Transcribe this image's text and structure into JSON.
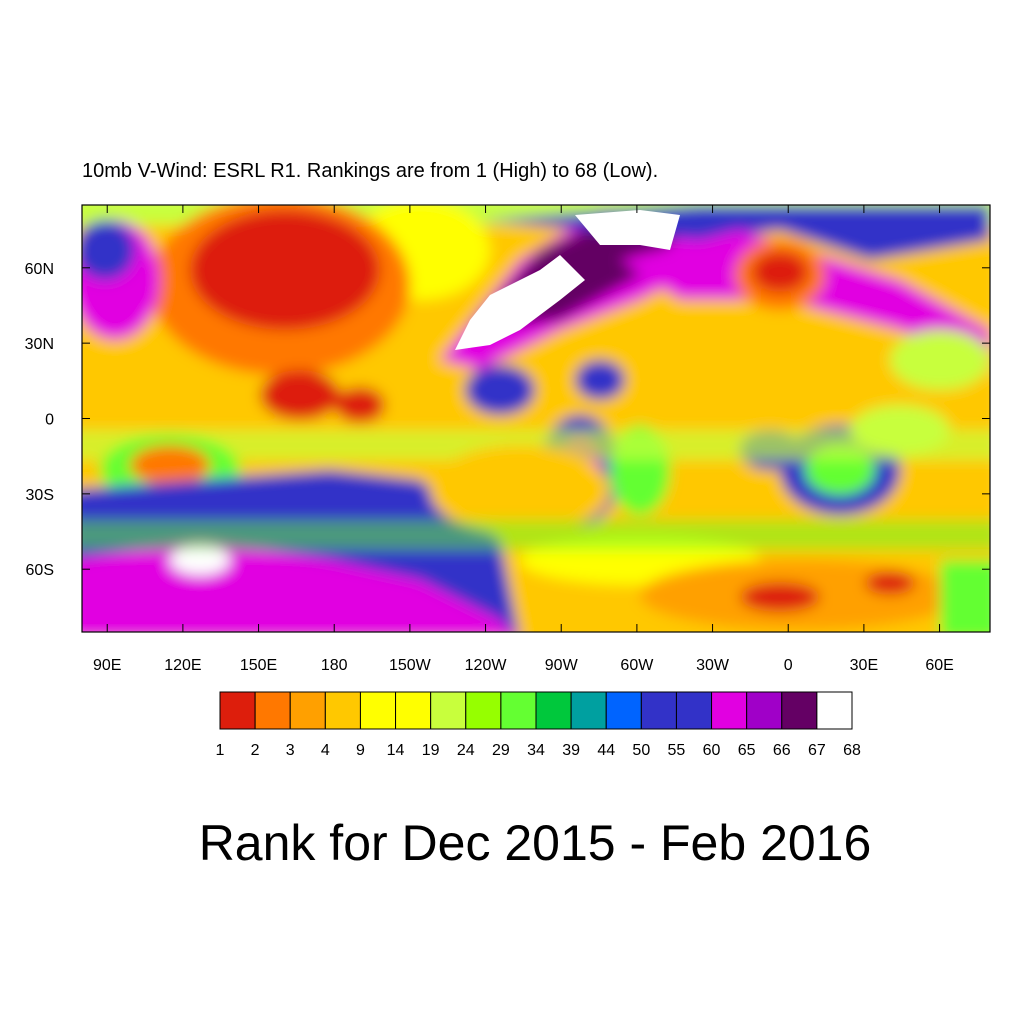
{
  "title": "10mb V-Wind: ESRL R1. Rankings are from 1 (High) to 68 (Low).",
  "caption": "Rank for Dec 2015 - Feb 2016",
  "map": {
    "xlim": [
      80,
      440
    ],
    "ylim": [
      -85,
      85
    ],
    "xticks": [
      {
        "value": 90,
        "label": "90E"
      },
      {
        "value": 120,
        "label": "120E"
      },
      {
        "value": 150,
        "label": "150E"
      },
      180,
      {
        "value": 210,
        "label": "150W"
      },
      {
        "value": 240,
        "label": "120W"
      },
      {
        "value": 270,
        "label": "90W"
      },
      {
        "value": 300,
        "label": "60W"
      },
      {
        "value": 330,
        "label": "30W"
      },
      {
        "value": 360,
        "label": "0"
      },
      {
        "value": 390,
        "label": "30E"
      },
      {
        "value": 420,
        "label": "60E"
      }
    ],
    "yticks": [
      {
        "value": 60,
        "label": "60N"
      },
      {
        "value": 30,
        "label": "30N"
      },
      0,
      {
        "value": -30,
        "label": "30S"
      },
      {
        "value": -60,
        "label": "60S"
      }
    ]
  },
  "colorbar": {
    "levels": [
      1,
      2,
      3,
      4,
      9,
      14,
      19,
      24,
      29,
      34,
      39,
      44,
      50,
      55,
      60,
      65,
      66,
      67,
      68
    ],
    "colors": [
      "#dd1e0c",
      "#ff7800",
      "#ffa000",
      "#ffc800",
      "#ffff00",
      "#ffff00",
      "#c8ff3c",
      "#96ff00",
      "#64ff32",
      "#00c83c",
      "#00a0a0",
      "#0064ff",
      "#3232c8",
      "#3232c8",
      "#e100e1",
      "#a000c8",
      "#640064",
      "#ffffff"
    ]
  }
}
